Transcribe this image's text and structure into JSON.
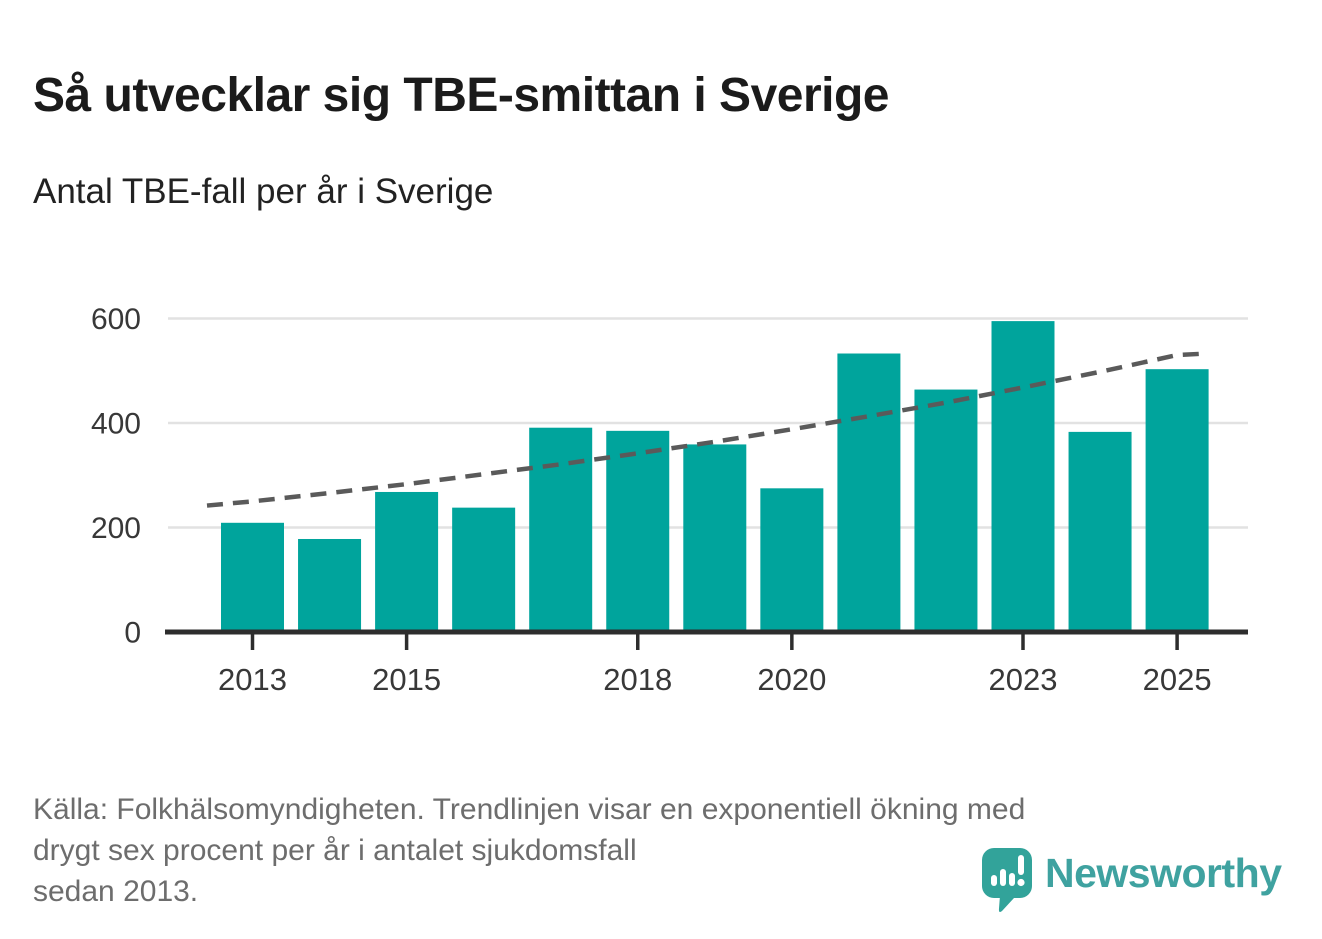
{
  "header": {
    "title": "Så utvecklar sig TBE-smittan i Sverige",
    "subtitle": "Antal TBE-fall per år i Sverige"
  },
  "chart_data": {
    "type": "bar",
    "title": "Så utvecklar sig TBE-smittan i Sverige",
    "subtitle": "Antal TBE-fall per år i Sverige",
    "categories": [
      "2013",
      "2014",
      "2015",
      "2016",
      "2017",
      "2018",
      "2019",
      "2020",
      "2021",
      "2022",
      "2023",
      "2024",
      "2025"
    ],
    "values": [
      209,
      178,
      268,
      238,
      391,
      385,
      359,
      275,
      533,
      464,
      595,
      383,
      503
    ],
    "trendline": {
      "description": "Exponentiell trend, drygt sex procent ökning per år sedan 2013",
      "style": "dashed",
      "values": [
        250,
        266,
        283,
        302,
        321,
        342,
        364,
        388,
        413,
        439,
        468,
        498,
        530
      ]
    },
    "xlabel": "",
    "ylabel": "",
    "ylim": [
      0,
      620
    ],
    "yticks": [
      "0",
      "200",
      "400",
      "600"
    ],
    "xticks_shown": [
      "2013",
      "2015",
      "2018",
      "2020",
      "2023",
      "2025"
    ],
    "grid": "horizontal",
    "legend": "none",
    "colors": {
      "bar": "#00a49c",
      "trend": "#5a5a5a",
      "grid": "#e2e2e2",
      "axis": "#2d2d2d",
      "tick_label": "#383838"
    }
  },
  "footer": {
    "source_lines": [
      "Källa: Folkhälsomyndigheten. Trendlinjen visar en exponentiell ökning med",
      "drygt sex procent per år i antalet sjukdomsfall",
      "sedan 2013."
    ],
    "logo": {
      "brand": "Newsworthy",
      "icon": "newsworthy-bubble-chart-icon",
      "bubble_color": "#32a39a",
      "text_color": "#3fa2a0"
    }
  }
}
